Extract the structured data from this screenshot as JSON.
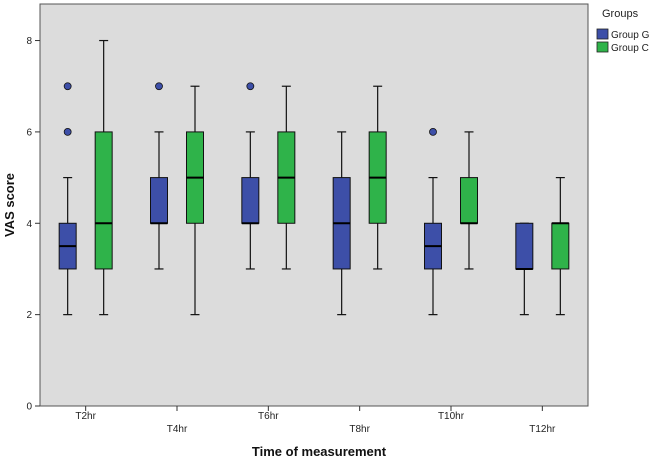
{
  "chart_data": {
    "type": "box",
    "xlabel": "Time of measurement",
    "ylabel": "VAS score",
    "ylim": [
      0,
      8.8
    ],
    "yticks": [
      "0",
      "2",
      "4",
      "6",
      "8"
    ],
    "categories": [
      "T2hr",
      "T4hr",
      "T6hr",
      "T8hr",
      "T10hr",
      "T12hr"
    ],
    "legend": {
      "title": "Groups",
      "placement": "top-right",
      "entries": [
        "Group G",
        "Group C"
      ]
    },
    "colors": {
      "plot_bg": "#dcdcdc",
      "group_g": "#3d4fa8",
      "group_c": "#2fb34a"
    },
    "series": [
      {
        "name": "Group G",
        "boxes": [
          {
            "min": 2,
            "q1": 3,
            "median": 3.5,
            "q3": 4,
            "max": 5,
            "outliers": [
              6,
              7
            ]
          },
          {
            "min": 3,
            "q1": 4,
            "median": 4,
            "q3": 5,
            "max": 6,
            "outliers": [
              7
            ]
          },
          {
            "min": 3,
            "q1": 4,
            "median": 4,
            "q3": 5,
            "max": 6,
            "outliers": [
              7
            ]
          },
          {
            "min": 2,
            "q1": 3,
            "median": 4,
            "q3": 5,
            "max": 6,
            "outliers": []
          },
          {
            "min": 2,
            "q1": 3,
            "median": 3.5,
            "q3": 4,
            "max": 5,
            "outliers": [
              6
            ]
          },
          {
            "min": 2,
            "q1": 3,
            "median": 3,
            "q3": 4,
            "max": 4,
            "outliers": []
          }
        ]
      },
      {
        "name": "Group C",
        "boxes": [
          {
            "min": 2,
            "q1": 3,
            "median": 4,
            "q3": 6,
            "max": 8,
            "outliers": []
          },
          {
            "min": 2,
            "q1": 4,
            "median": 5,
            "q3": 6,
            "max": 7,
            "outliers": []
          },
          {
            "min": 3,
            "q1": 4,
            "median": 5,
            "q3": 6,
            "max": 7,
            "outliers": []
          },
          {
            "min": 3,
            "q1": 4,
            "median": 5,
            "q3": 6,
            "max": 7,
            "outliers": []
          },
          {
            "min": 3,
            "q1": 4,
            "median": 4,
            "q3": 5,
            "max": 6,
            "outliers": []
          },
          {
            "min": 2,
            "q1": 3,
            "median": 4,
            "q3": 4,
            "max": 5,
            "outliers": []
          }
        ]
      }
    ]
  }
}
